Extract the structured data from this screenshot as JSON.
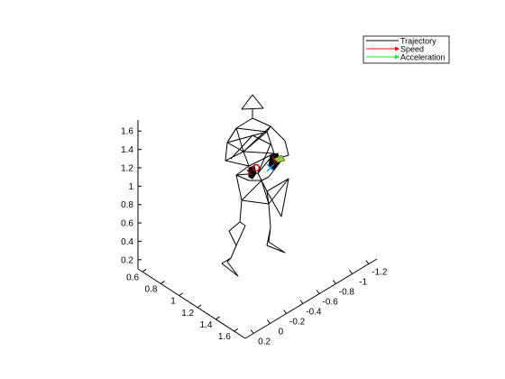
{
  "chart_data": {
    "type": "line",
    "projection": "3d",
    "grid": false,
    "legend_position": "top-right",
    "legend": [
      {
        "label": "Trajectory",
        "color": "#000000",
        "marker": "line"
      },
      {
        "label": "Speed",
        "color": "#ff0000",
        "marker": "arrow"
      },
      {
        "label": "Acceleration",
        "color": "#00ff00",
        "marker": "arrow"
      }
    ],
    "z_axis": {
      "ticks": [
        "0.2",
        "0.4",
        "0.6",
        "0.8",
        "1",
        "1.2",
        "1.4",
        "1.6"
      ],
      "lim": [
        0.1,
        1.72
      ]
    },
    "y_axis": {
      "ticks": [
        "0.6",
        "0.8",
        "1",
        "1.2",
        "1.4",
        "1.6"
      ],
      "lim": [
        0.55,
        1.72
      ]
    },
    "x_axis": {
      "ticks": [
        "0.2",
        "0",
        "-0.2",
        "-0.4",
        "-0.6",
        "-0.8",
        "-1",
        "-1.2"
      ],
      "lim": [
        0.3,
        -1.3
      ]
    },
    "skeleton_color": "#000000",
    "marker_colors": {
      "hand_ring": "#cc0000",
      "cross": "#1e90ff",
      "acceleration": "#9acd32"
    }
  }
}
